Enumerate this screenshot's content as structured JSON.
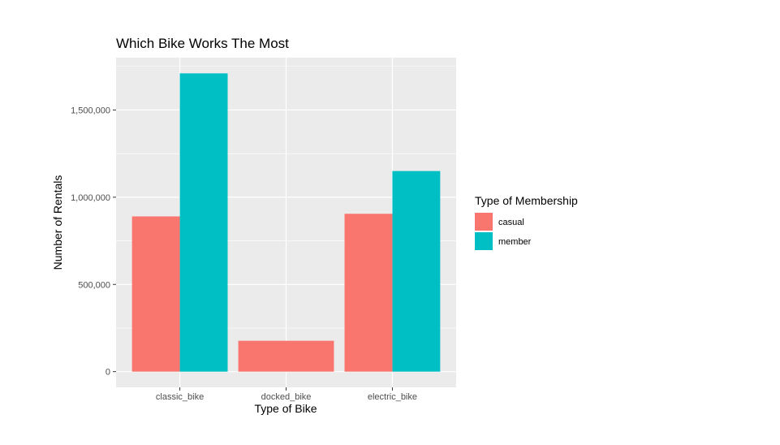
{
  "chart_data": {
    "type": "bar",
    "title": "Which Bike Works The Most",
    "xlabel": "Type of Bike",
    "ylabel": "Number of Rentals",
    "categories": [
      "classic_bike",
      "docked_bike",
      "electric_bike"
    ],
    "series": [
      {
        "name": "casual",
        "color": "#F8766D",
        "values": [
          890000,
          177000,
          905000
        ]
      },
      {
        "name": "member",
        "color": "#00BFC4",
        "values": [
          1710000,
          null,
          1150000
        ]
      }
    ],
    "ylim": [
      -90000,
      1800000
    ],
    "yticks": [
      0,
      500000,
      1000000,
      1500000
    ],
    "ytick_labels": [
      "0",
      "500,000",
      "1,000,000",
      "1,500,000"
    ],
    "grid": true,
    "panel_background": "#EBEBEB",
    "legend": {
      "title": "Type of Membership",
      "placement": "right",
      "items": [
        "casual",
        "member"
      ]
    }
  }
}
